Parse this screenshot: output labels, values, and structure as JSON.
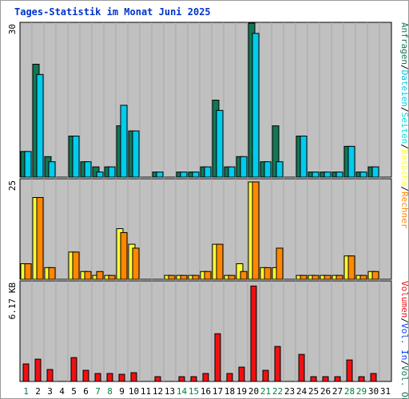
{
  "chart_data": {
    "type": "bar",
    "title": "Tages-Statistik im Monat Juni 2025",
    "x": [
      "1",
      "2",
      "3",
      "4",
      "5",
      "6",
      "7",
      "8",
      "9",
      "10",
      "11",
      "12",
      "13",
      "14",
      "15",
      "16",
      "17",
      "18",
      "19",
      "20",
      "21",
      "22",
      "23",
      "24",
      "25",
      "26",
      "27",
      "28",
      "29",
      "30",
      "31"
    ],
    "weekend_days": [
      "1",
      "7",
      "8",
      "14",
      "15",
      "21",
      "22",
      "28",
      "29"
    ],
    "colors": {
      "background": "#c0c0c0",
      "weekday_label": "#000000",
      "weekend_label": "#008040",
      "title": "#0033cc",
      "anfragen": "#117755",
      "dateien": "#00ccee",
      "seiten": "#00dddd",
      "besuche": "#ffff33",
      "rechner": "#ff8800",
      "volumen": "#ee1111",
      "separator": "#000000"
    },
    "panels": [
      {
        "id": "top",
        "ymax": 30,
        "ymax_label": "30",
        "series": [
          {
            "name": "Anfragen",
            "color": "#117755",
            "values": [
              5,
              22,
              4,
              0,
              8,
              3,
              2,
              2,
              10,
              9,
              0,
              1,
              0,
              1,
              1,
              2,
              15,
              2,
              4,
              30,
              3,
              10,
              0,
              8,
              1,
              1,
              1,
              6,
              1,
              2,
              0
            ]
          },
          {
            "name": "Dateien",
            "color": "#00ccee",
            "values": [
              5,
              20,
              3,
              0,
              8,
              3,
              1,
              2,
              14,
              9,
              0,
              1,
              0,
              1,
              1,
              2,
              13,
              2,
              4,
              28,
              3,
              3,
              0,
              8,
              1,
              1,
              1,
              6,
              1,
              2,
              0
            ]
          }
        ],
        "legend": [
          {
            "text": "Anfragen",
            "color": "#117755"
          },
          {
            "text": "/",
            "color": "#000000"
          },
          {
            "text": "Dateien",
            "color": "#00ccee"
          },
          {
            "text": "/",
            "color": "#000000"
          },
          {
            "text": "Seiten",
            "color": "#00dddd"
          },
          {
            "text": "/",
            "color": "#000000"
          },
          {
            "text": "Besuche",
            "color": "#ffff33"
          },
          {
            "text": "/",
            "color": "#000000"
          },
          {
            "text": "Rechner",
            "color": "#ff8800"
          }
        ]
      },
      {
        "id": "middle",
        "ymax": 25,
        "ymax_label": "25",
        "series": [
          {
            "name": "Besuche",
            "color": "#ffff33",
            "values": [
              4,
              21,
              3,
              0,
              7,
              2,
              1,
              1,
              13,
              9,
              0,
              0,
              1,
              1,
              1,
              2,
              9,
              1,
              4,
              25,
              3,
              3,
              0,
              1,
              1,
              1,
              1,
              6,
              1,
              2,
              0
            ]
          },
          {
            "name": "Rechner",
            "color": "#ff8800",
            "values": [
              4,
              21,
              3,
              0,
              7,
              2,
              2,
              1,
              12,
              8,
              0,
              0,
              1,
              1,
              1,
              2,
              9,
              1,
              2,
              25,
              3,
              8,
              0,
              1,
              1,
              1,
              1,
              6,
              1,
              2,
              0
            ]
          }
        ]
      },
      {
        "id": "bottom",
        "ymax": 6.17,
        "ymax_label": "6.17 KB",
        "series": [
          {
            "name": "Volumen",
            "color": "#ee1111",
            "values": [
              1.1,
              1.4,
              0.75,
              0,
              1.5,
              0.7,
              0.5,
              0.5,
              0.45,
              0.55,
              0,
              0.3,
              0,
              0.3,
              0.3,
              0.5,
              3.0,
              0.5,
              0.9,
              6.0,
              0.7,
              2.2,
              0,
              1.7,
              0.3,
              0.3,
              0.3,
              1.35,
              0.3,
              0.5,
              0
            ]
          }
        ],
        "legend": [
          {
            "text": "Volumen",
            "color": "#ee1111"
          },
          {
            "text": "/",
            "color": "#000000"
          },
          {
            "text": "Vol. In",
            "color": "#0044ff"
          },
          {
            "text": "/",
            "color": "#000000"
          },
          {
            "text": "Vol. Out",
            "color": "#117755"
          }
        ]
      }
    ]
  }
}
